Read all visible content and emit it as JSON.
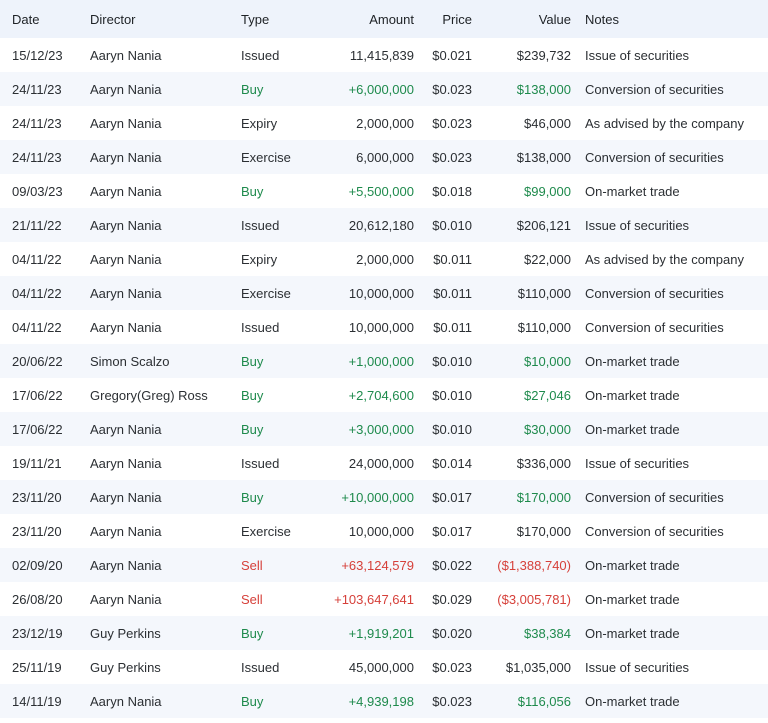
{
  "colors": {
    "header_bg": "#eef3fb",
    "stripe_bg": "#f4f7fc",
    "buy": "#1e8a4c",
    "sell": "#d6403a",
    "text": "#2b2f33"
  },
  "table": {
    "headers": {
      "date": "Date",
      "director": "Director",
      "type": "Type",
      "amount": "Amount",
      "price": "Price",
      "value": "Value",
      "notes": "Notes"
    },
    "rows": [
      {
        "date": "15/12/23",
        "director": "Aaryn Nania",
        "type": "Issued",
        "amount": "11,415,839",
        "price": "$0.021",
        "value": "$239,732",
        "notes": "Issue of securities",
        "kind": "neutral"
      },
      {
        "date": "24/11/23",
        "director": "Aaryn Nania",
        "type": "Buy",
        "amount": "+6,000,000",
        "price": "$0.023",
        "value": "$138,000",
        "notes": "Conversion of securities",
        "kind": "buy"
      },
      {
        "date": "24/11/23",
        "director": "Aaryn Nania",
        "type": "Expiry",
        "amount": "2,000,000",
        "price": "$0.023",
        "value": "$46,000",
        "notes": "As advised by the company",
        "kind": "neutral"
      },
      {
        "date": "24/11/23",
        "director": "Aaryn Nania",
        "type": "Exercise",
        "amount": "6,000,000",
        "price": "$0.023",
        "value": "$138,000",
        "notes": "Conversion of securities",
        "kind": "neutral"
      },
      {
        "date": "09/03/23",
        "director": "Aaryn Nania",
        "type": "Buy",
        "amount": "+5,500,000",
        "price": "$0.018",
        "value": "$99,000",
        "notes": "On-market trade",
        "kind": "buy"
      },
      {
        "date": "21/11/22",
        "director": "Aaryn Nania",
        "type": "Issued",
        "amount": "20,612,180",
        "price": "$0.010",
        "value": "$206,121",
        "notes": "Issue of securities",
        "kind": "neutral"
      },
      {
        "date": "04/11/22",
        "director": "Aaryn Nania",
        "type": "Expiry",
        "amount": "2,000,000",
        "price": "$0.011",
        "value": "$22,000",
        "notes": "As advised by the company",
        "kind": "neutral"
      },
      {
        "date": "04/11/22",
        "director": "Aaryn Nania",
        "type": "Exercise",
        "amount": "10,000,000",
        "price": "$0.011",
        "value": "$110,000",
        "notes": "Conversion of securities",
        "kind": "neutral"
      },
      {
        "date": "04/11/22",
        "director": "Aaryn Nania",
        "type": "Issued",
        "amount": "10,000,000",
        "price": "$0.011",
        "value": "$110,000",
        "notes": "Conversion of securities",
        "kind": "neutral"
      },
      {
        "date": "20/06/22",
        "director": "Simon Scalzo",
        "type": "Buy",
        "amount": "+1,000,000",
        "price": "$0.010",
        "value": "$10,000",
        "notes": "On-market trade",
        "kind": "buy"
      },
      {
        "date": "17/06/22",
        "director": "Gregory(Greg) Ross",
        "type": "Buy",
        "amount": "+2,704,600",
        "price": "$0.010",
        "value": "$27,046",
        "notes": "On-market trade",
        "kind": "buy"
      },
      {
        "date": "17/06/22",
        "director": "Aaryn Nania",
        "type": "Buy",
        "amount": "+3,000,000",
        "price": "$0.010",
        "value": "$30,000",
        "notes": "On-market trade",
        "kind": "buy"
      },
      {
        "date": "19/11/21",
        "director": "Aaryn Nania",
        "type": "Issued",
        "amount": "24,000,000",
        "price": "$0.014",
        "value": "$336,000",
        "notes": "Issue of securities",
        "kind": "neutral"
      },
      {
        "date": "23/11/20",
        "director": "Aaryn Nania",
        "type": "Buy",
        "amount": "+10,000,000",
        "price": "$0.017",
        "value": "$170,000",
        "notes": "Conversion of securities",
        "kind": "buy"
      },
      {
        "date": "23/11/20",
        "director": "Aaryn Nania",
        "type": "Exercise",
        "amount": "10,000,000",
        "price": "$0.017",
        "value": "$170,000",
        "notes": "Conversion of securities",
        "kind": "neutral"
      },
      {
        "date": "02/09/20",
        "director": "Aaryn Nania",
        "type": "Sell",
        "amount": "+63,124,579",
        "price": "$0.022",
        "value": "($1,388,740)",
        "notes": "On-market trade",
        "kind": "sell"
      },
      {
        "date": "26/08/20",
        "director": "Aaryn Nania",
        "type": "Sell",
        "amount": "+103,647,641",
        "price": "$0.029",
        "value": "($3,005,781)",
        "notes": "On-market trade",
        "kind": "sell"
      },
      {
        "date": "23/12/19",
        "director": "Guy Perkins",
        "type": "Buy",
        "amount": "+1,919,201",
        "price": "$0.020",
        "value": "$38,384",
        "notes": "On-market trade",
        "kind": "buy"
      },
      {
        "date": "25/11/19",
        "director": "Guy Perkins",
        "type": "Issued",
        "amount": "45,000,000",
        "price": "$0.023",
        "value": "$1,035,000",
        "notes": "Issue of securities",
        "kind": "neutral"
      },
      {
        "date": "14/11/19",
        "director": "Aaryn Nania",
        "type": "Buy",
        "amount": "+4,939,198",
        "price": "$0.023",
        "value": "$116,056",
        "notes": "On-market trade",
        "kind": "buy"
      }
    ]
  }
}
